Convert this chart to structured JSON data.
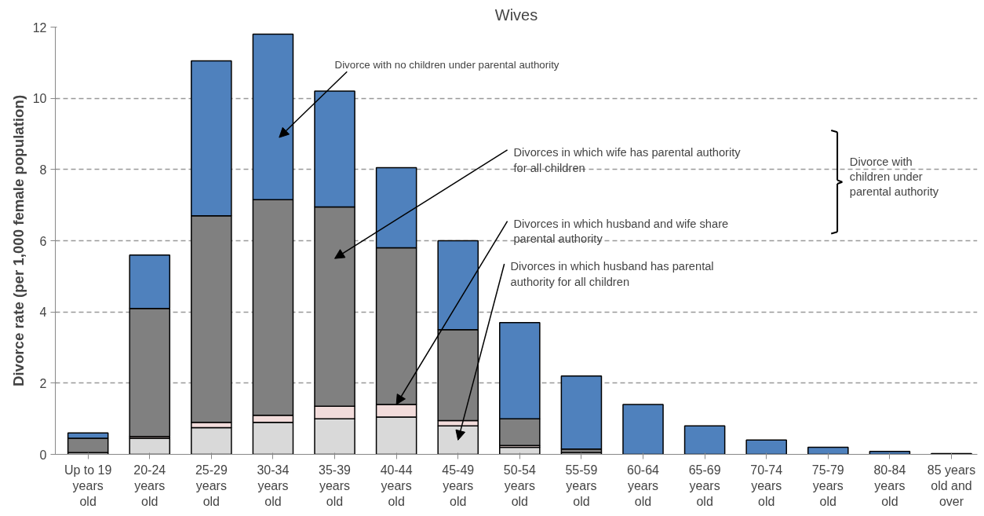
{
  "chart_data": {
    "type": "bar",
    "title": "Wives",
    "ylabel": "Divorce rate (per 1,000 female population)",
    "stacked": true,
    "categories": [
      "Up to 19 years old",
      "20-24 years old",
      "25-29 years old",
      "30-34 years old",
      "35-39 years old",
      "40-44 years old",
      "45-49 years old",
      "50-54 years old",
      "55-59 years old",
      "60-64 years old",
      "65-69 years old",
      "70-74 years old",
      "75-79 years old",
      "80-84 years old",
      "85 years old and over"
    ],
    "series": [
      {
        "color": "#d9d9d9",
        "values": [
          0.05,
          0.45,
          0.75,
          0.9,
          1.0,
          1.05,
          0.8,
          0.2,
          0.05,
          0,
          0,
          0,
          0,
          0,
          0
        ]
      },
      {
        "color": "#f2dcdb",
        "values": [
          0,
          0.05,
          0.15,
          0.2,
          0.35,
          0.35,
          0.15,
          0.05,
          0,
          0,
          0,
          0,
          0,
          0,
          0
        ]
      },
      {
        "color": "#808080",
        "values": [
          0.4,
          3.6,
          5.8,
          6.05,
          5.6,
          4.4,
          2.55,
          0.75,
          0.1,
          0,
          0,
          0,
          0,
          0,
          0
        ]
      },
      {
        "color": "#4f81bd",
        "values": [
          0.15,
          1.5,
          4.35,
          4.65,
          3.25,
          2.25,
          2.5,
          2.7,
          2.05,
          1.4,
          0.8,
          0.4,
          0.2,
          0.08,
          0.02
        ]
      }
    ],
    "ylim": [
      0,
      12
    ],
    "yticks": [
      0,
      2,
      4,
      6,
      8,
      10,
      12
    ],
    "grid": "y",
    "annotations": [
      "Divorce with no children under parental authority",
      "Divorces in which wife has parental authority for all children",
      {
        "text": "Divorces in which husband and wife share parental authority",
        "x": "40-44 years old",
        "y": 1.4
      },
      "Divorces in which husband has parental authority for all children",
      "Divorce with children under parental authority"
    ]
  }
}
